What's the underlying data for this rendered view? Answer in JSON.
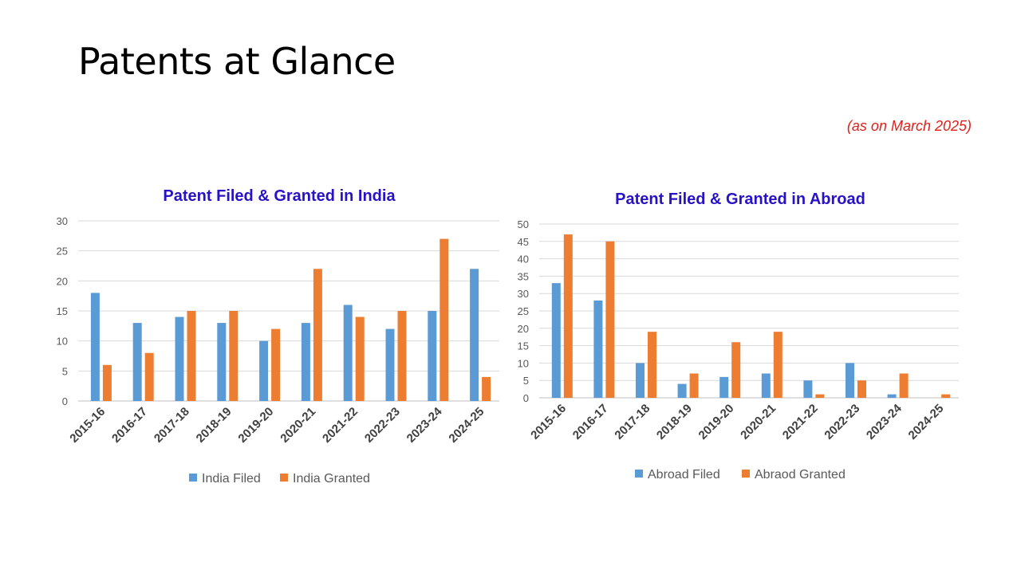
{
  "slide": {
    "title": "Patents at Glance",
    "as_on": "(as on March 2025)"
  },
  "colors": {
    "filed": "#5b9bd5",
    "granted": "#ed7d31",
    "chart_title": "#2812c8",
    "as_on": "#e0201b"
  },
  "chart_data": [
    {
      "type": "bar",
      "title": "Patent Filed & Granted in India",
      "categories": [
        "2015-16",
        "2016-17",
        "2017-18",
        "2018-19",
        "2019-20",
        "2020-21",
        "2021-22",
        "2022-23",
        "2023-24",
        "2024-25"
      ],
      "series": [
        {
          "name": "India Filed",
          "values": [
            18,
            13,
            14,
            13,
            10,
            13,
            16,
            12,
            15,
            22
          ]
        },
        {
          "name": "India Granted",
          "values": [
            6,
            8,
            15,
            15,
            12,
            22,
            14,
            15,
            27,
            4
          ]
        }
      ],
      "ylim": [
        0,
        30
      ],
      "yticks": [
        0,
        5,
        10,
        15,
        20,
        25,
        30
      ],
      "grid": true,
      "legend": "bottom"
    },
    {
      "type": "bar",
      "title": "Patent Filed & Granted in Abroad",
      "categories": [
        "2015-16",
        "2016-17",
        "2017-18",
        "2018-19",
        "2019-20",
        "2020-21",
        "2021-22",
        "2022-23",
        "2023-24",
        "2024-25"
      ],
      "series": [
        {
          "name": "Abroad Filed",
          "values": [
            33,
            28,
            10,
            4,
            6,
            7,
            5,
            10,
            1,
            0
          ]
        },
        {
          "name": "Abraod Granted",
          "values": [
            47,
            45,
            19,
            7,
            16,
            19,
            1,
            5,
            7,
            1
          ]
        }
      ],
      "ylim": [
        0,
        50
      ],
      "yticks": [
        0,
        5,
        10,
        15,
        20,
        25,
        30,
        35,
        40,
        45,
        50
      ],
      "grid": true,
      "legend": "bottom"
    }
  ]
}
